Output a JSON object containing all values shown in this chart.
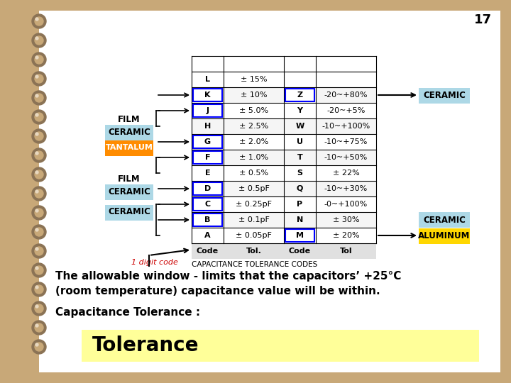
{
  "title": "Tolerance",
  "title_bg": "#FFFF99",
  "bg_color": "#FFFFFF",
  "slide_bg": "#C8A878",
  "text1": "Capacitance Tolerance :",
  "text2": "The allowable window - limits that the capacitors’ +25°C\n(room temperature) capacitance value will be within.",
  "table_title": "CAPACITANCE TOLERANCE CODES",
  "table_headers": [
    "Code",
    "Tol.",
    "Code",
    "Tol"
  ],
  "table_rows": [
    [
      "A",
      "± 0.05pF",
      "M",
      "± 20%"
    ],
    [
      "B",
      "± 0.1pF",
      "N",
      "± 30%"
    ],
    [
      "C",
      "± 0.25pF",
      "P",
      "-0~+100%"
    ],
    [
      "D",
      "± 0.5pF",
      "Q",
      "-10~+30%"
    ],
    [
      "E",
      "± 0.5%",
      "S",
      "± 22%"
    ],
    [
      "F",
      "± 1.0%",
      "T",
      "-10~+50%"
    ],
    [
      "G",
      "± 2.0%",
      "U",
      "-10~+75%"
    ],
    [
      "H",
      "± 2.5%",
      "W",
      "-10~+100%"
    ],
    [
      "J",
      "± 5.0%",
      "Y",
      "-20~+5%"
    ],
    [
      "K",
      "± 10%",
      "Z",
      "-20~+80%"
    ],
    [
      "L",
      "± 15%",
      "",
      ""
    ]
  ],
  "blue_outlined_codes": [
    "B",
    "C",
    "D",
    "F",
    "G",
    "J",
    "K",
    "M",
    "Z"
  ],
  "ceramic_label": "CERAMIC",
  "ceramic_color": "#ADD8E6",
  "ceramic_film_label1": "CERAMIC",
  "ceramic_film_label2": "FILM",
  "ceramic_film_color": "#ADD8E6",
  "tantalum_label": "TANTALUM",
  "tantalum_color": "#FF8C00",
  "aluminum_label": "ALUMINUM",
  "aluminum_color": "#FFD700",
  "aluminum_ceramic_label": "CERAMIC",
  "aluminum_ceramic_color": "#ADD8E6",
  "ceramic_right_label": "CERAMIC",
  "ceramic_right_color": "#ADD8E6",
  "digit_code_text": "1 digit code",
  "digit_code_color": "#CC0000",
  "page_number": "17",
  "font_color": "#000000"
}
